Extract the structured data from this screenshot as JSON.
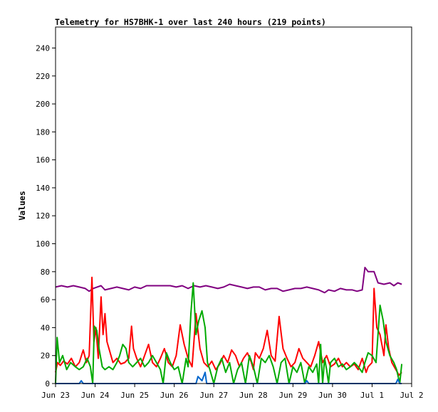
{
  "chart_data": {
    "type": "line",
    "title": "Telemetry for HS7BHK-1 over last 240 hours (219 points)",
    "xlabel": "",
    "ylabel": "Values",
    "ylim": [
      0,
      255
    ],
    "yticks": [
      0,
      20,
      40,
      60,
      80,
      100,
      120,
      140,
      160,
      180,
      200,
      220,
      240
    ],
    "xlim_days": [
      0,
      9
    ],
    "xticks": [
      {
        "label": "Jun 23",
        "day": 0
      },
      {
        "label": "Jun 24",
        "day": 1
      },
      {
        "label": "Jun 25",
        "day": 2
      },
      {
        "label": "Jun 26",
        "day": 3
      },
      {
        "label": "Jun 27",
        "day": 4
      },
      {
        "label": "Jun 28",
        "day": 5
      },
      {
        "label": "Jun 29",
        "day": 6
      },
      {
        "label": "Jun 30",
        "day": 7
      },
      {
        "label": "Jul 1",
        "day": 8
      },
      {
        "label": "Jul 2",
        "day": 9
      }
    ],
    "grid": false,
    "legend": "none",
    "series": [
      {
        "color": "#800080",
        "points": [
          [
            0.0,
            69
          ],
          [
            0.15,
            70
          ],
          [
            0.3,
            69
          ],
          [
            0.45,
            70
          ],
          [
            0.6,
            69
          ],
          [
            0.75,
            68
          ],
          [
            0.85,
            66
          ],
          [
            0.95,
            68
          ],
          [
            1.05,
            69
          ],
          [
            1.15,
            70
          ],
          [
            1.25,
            67
          ],
          [
            1.4,
            68
          ],
          [
            1.55,
            69
          ],
          [
            1.7,
            68
          ],
          [
            1.85,
            67
          ],
          [
            2.0,
            69
          ],
          [
            2.15,
            68
          ],
          [
            2.3,
            70
          ],
          [
            2.5,
            70
          ],
          [
            2.7,
            70
          ],
          [
            2.9,
            70
          ],
          [
            3.05,
            69
          ],
          [
            3.2,
            70
          ],
          [
            3.35,
            68
          ],
          [
            3.5,
            70
          ],
          [
            3.65,
            69
          ],
          [
            3.8,
            70
          ],
          [
            3.95,
            69
          ],
          [
            4.1,
            68
          ],
          [
            4.25,
            69
          ],
          [
            4.4,
            71
          ],
          [
            4.55,
            70
          ],
          [
            4.7,
            69
          ],
          [
            4.85,
            68
          ],
          [
            5.0,
            69
          ],
          [
            5.15,
            69
          ],
          [
            5.3,
            67
          ],
          [
            5.45,
            68
          ],
          [
            5.6,
            68
          ],
          [
            5.75,
            66
          ],
          [
            5.9,
            67
          ],
          [
            6.05,
            68
          ],
          [
            6.2,
            68
          ],
          [
            6.35,
            69
          ],
          [
            6.5,
            68
          ],
          [
            6.65,
            67
          ],
          [
            6.8,
            65
          ],
          [
            6.9,
            67
          ],
          [
            7.05,
            66
          ],
          [
            7.2,
            68
          ],
          [
            7.35,
            67
          ],
          [
            7.5,
            67
          ],
          [
            7.62,
            66
          ],
          [
            7.75,
            67
          ],
          [
            7.82,
            83
          ],
          [
            7.9,
            80
          ],
          [
            8.05,
            80
          ],
          [
            8.15,
            72
          ],
          [
            8.3,
            71
          ],
          [
            8.45,
            72
          ],
          [
            8.55,
            70
          ],
          [
            8.65,
            72
          ],
          [
            8.75,
            71
          ]
        ]
      },
      {
        "color": "#ff0000",
        "points": [
          [
            0.0,
            8
          ],
          [
            0.05,
            15
          ],
          [
            0.12,
            13
          ],
          [
            0.2,
            16
          ],
          [
            0.3,
            14
          ],
          [
            0.4,
            18
          ],
          [
            0.5,
            12
          ],
          [
            0.6,
            15
          ],
          [
            0.7,
            24
          ],
          [
            0.78,
            15
          ],
          [
            0.85,
            20
          ],
          [
            0.92,
            76
          ],
          [
            0.97,
            30
          ],
          [
            1.02,
            40
          ],
          [
            1.08,
            18
          ],
          [
            1.15,
            62
          ],
          [
            1.2,
            35
          ],
          [
            1.25,
            50
          ],
          [
            1.3,
            30
          ],
          [
            1.38,
            22
          ],
          [
            1.45,
            15
          ],
          [
            1.55,
            18
          ],
          [
            1.65,
            14
          ],
          [
            1.75,
            15
          ],
          [
            1.85,
            18
          ],
          [
            1.92,
            41
          ],
          [
            1.97,
            25
          ],
          [
            2.05,
            18
          ],
          [
            2.15,
            12
          ],
          [
            2.25,
            20
          ],
          [
            2.35,
            28
          ],
          [
            2.45,
            15
          ],
          [
            2.55,
            12
          ],
          [
            2.65,
            18
          ],
          [
            2.75,
            25
          ],
          [
            2.85,
            15
          ],
          [
            2.95,
            12
          ],
          [
            3.05,
            20
          ],
          [
            3.15,
            42
          ],
          [
            3.25,
            28
          ],
          [
            3.35,
            18
          ],
          [
            3.45,
            12
          ],
          [
            3.55,
            50
          ],
          [
            3.65,
            25
          ],
          [
            3.75,
            15
          ],
          [
            3.85,
            12
          ],
          [
            3.95,
            16
          ],
          [
            4.05,
            10
          ],
          [
            4.15,
            14
          ],
          [
            4.25,
            20
          ],
          [
            4.35,
            15
          ],
          [
            4.45,
            24
          ],
          [
            4.55,
            20
          ],
          [
            4.65,
            12
          ],
          [
            4.75,
            18
          ],
          [
            4.85,
            22
          ],
          [
            4.95,
            15
          ],
          [
            5.0,
            10
          ],
          [
            5.05,
            22
          ],
          [
            5.15,
            18
          ],
          [
            5.25,
            25
          ],
          [
            5.35,
            38
          ],
          [
            5.45,
            20
          ],
          [
            5.55,
            16
          ],
          [
            5.65,
            48
          ],
          [
            5.75,
            25
          ],
          [
            5.85,
            18
          ],
          [
            5.95,
            12
          ],
          [
            6.05,
            15
          ],
          [
            6.15,
            25
          ],
          [
            6.25,
            18
          ],
          [
            6.35,
            15
          ],
          [
            6.45,
            12
          ],
          [
            6.55,
            20
          ],
          [
            6.65,
            30
          ],
          [
            6.75,
            15
          ],
          [
            6.85,
            20
          ],
          [
            6.95,
            12
          ],
          [
            7.05,
            14
          ],
          [
            7.15,
            18
          ],
          [
            7.25,
            12
          ],
          [
            7.35,
            15
          ],
          [
            7.45,
            12
          ],
          [
            7.55,
            14
          ],
          [
            7.65,
            10
          ],
          [
            7.75,
            18
          ],
          [
            7.85,
            8
          ],
          [
            7.9,
            12
          ],
          [
            8.0,
            15
          ],
          [
            8.05,
            68
          ],
          [
            8.12,
            40
          ],
          [
            8.2,
            35
          ],
          [
            8.3,
            20
          ],
          [
            8.35,
            42
          ],
          [
            8.42,
            25
          ],
          [
            8.5,
            15
          ],
          [
            8.6,
            10
          ],
          [
            8.68,
            6
          ],
          [
            8.75,
            8
          ]
        ]
      },
      {
        "color": "#00aa00",
        "points": [
          [
            0.0,
            0
          ],
          [
            0.04,
            33
          ],
          [
            0.1,
            15
          ],
          [
            0.18,
            20
          ],
          [
            0.28,
            10
          ],
          [
            0.38,
            15
          ],
          [
            0.5,
            12
          ],
          [
            0.6,
            10
          ],
          [
            0.7,
            12
          ],
          [
            0.8,
            18
          ],
          [
            0.88,
            12
          ],
          [
            0.94,
            0
          ],
          [
            0.98,
            41
          ],
          [
            1.04,
            38
          ],
          [
            1.1,
            25
          ],
          [
            1.18,
            12
          ],
          [
            1.25,
            10
          ],
          [
            1.35,
            12
          ],
          [
            1.45,
            10
          ],
          [
            1.55,
            15
          ],
          [
            1.62,
            20
          ],
          [
            1.7,
            28
          ],
          [
            1.78,
            25
          ],
          [
            1.85,
            15
          ],
          [
            1.95,
            12
          ],
          [
            2.05,
            15
          ],
          [
            2.15,
            18
          ],
          [
            2.25,
            12
          ],
          [
            2.35,
            15
          ],
          [
            2.45,
            20
          ],
          [
            2.55,
            15
          ],
          [
            2.65,
            10
          ],
          [
            2.72,
            0
          ],
          [
            2.8,
            22
          ],
          [
            2.9,
            15
          ],
          [
            3.0,
            10
          ],
          [
            3.1,
            12
          ],
          [
            3.2,
            0
          ],
          [
            3.3,
            18
          ],
          [
            3.35,
            12
          ],
          [
            3.42,
            50
          ],
          [
            3.48,
            72
          ],
          [
            3.55,
            35
          ],
          [
            3.62,
            45
          ],
          [
            3.7,
            52
          ],
          [
            3.78,
            40
          ],
          [
            3.84,
            15
          ],
          [
            3.9,
            10
          ],
          [
            4.0,
            0
          ],
          [
            4.1,
            12
          ],
          [
            4.2,
            18
          ],
          [
            4.3,
            8
          ],
          [
            4.4,
            15
          ],
          [
            4.5,
            0
          ],
          [
            4.6,
            10
          ],
          [
            4.7,
            15
          ],
          [
            4.8,
            0
          ],
          [
            4.9,
            20
          ],
          [
            5.0,
            12
          ],
          [
            5.1,
            0
          ],
          [
            5.2,
            18
          ],
          [
            5.3,
            15
          ],
          [
            5.4,
            20
          ],
          [
            5.5,
            12
          ],
          [
            5.6,
            0
          ],
          [
            5.7,
            15
          ],
          [
            5.8,
            18
          ],
          [
            5.9,
            0
          ],
          [
            6.0,
            12
          ],
          [
            6.1,
            8
          ],
          [
            6.2,
            15
          ],
          [
            6.3,
            0
          ],
          [
            6.4,
            12
          ],
          [
            6.5,
            8
          ],
          [
            6.6,
            14
          ],
          [
            6.65,
            0
          ],
          [
            6.7,
            28
          ],
          [
            6.75,
            0
          ],
          [
            6.8,
            18
          ],
          [
            6.85,
            10
          ],
          [
            6.9,
            0
          ],
          [
            6.95,
            15
          ],
          [
            7.05,
            18
          ],
          [
            7.15,
            12
          ],
          [
            7.25,
            14
          ],
          [
            7.35,
            10
          ],
          [
            7.45,
            12
          ],
          [
            7.55,
            15
          ],
          [
            7.65,
            12
          ],
          [
            7.75,
            8
          ],
          [
            7.82,
            15
          ],
          [
            7.9,
            22
          ],
          [
            8.0,
            20
          ],
          [
            8.1,
            15
          ],
          [
            8.2,
            56
          ],
          [
            8.28,
            45
          ],
          [
            8.35,
            30
          ],
          [
            8.45,
            20
          ],
          [
            8.55,
            15
          ],
          [
            8.62,
            10
          ],
          [
            8.7,
            0
          ],
          [
            8.75,
            14
          ]
        ]
      },
      {
        "color": "#0066cc",
        "points": [
          [
            0.0,
            0
          ],
          [
            0.6,
            0
          ],
          [
            0.65,
            2
          ],
          [
            0.7,
            0
          ],
          [
            3.55,
            0
          ],
          [
            3.6,
            5
          ],
          [
            3.7,
            2
          ],
          [
            3.78,
            8
          ],
          [
            3.82,
            0
          ],
          [
            6.3,
            0
          ],
          [
            6.35,
            2
          ],
          [
            6.4,
            0
          ],
          [
            8.6,
            0
          ],
          [
            8.65,
            3
          ],
          [
            8.7,
            0
          ],
          [
            8.75,
            0
          ]
        ]
      }
    ]
  }
}
